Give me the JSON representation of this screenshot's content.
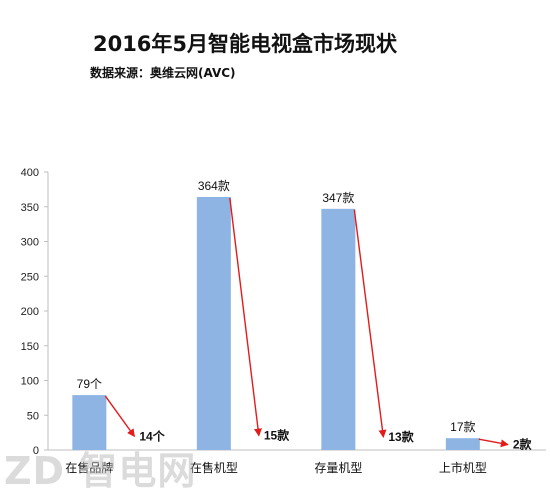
{
  "title": "2016年5月智能电视盒市场现状",
  "subtitle": "数据来源：奥维云网(AVC)",
  "watermark": "ZD 智电网",
  "colors": {
    "bar": "#8eb4e3",
    "arrow": "#e31b1b",
    "axis": "#bfbfbf"
  },
  "chart_data": {
    "type": "bar",
    "categories": [
      "在售品牌",
      "在售机型",
      "存量机型",
      "上市机型"
    ],
    "values": [
      79,
      364,
      347,
      17
    ],
    "bar_labels": [
      "79个",
      "364款",
      "347款",
      "17款"
    ],
    "secondary_values": [
      14,
      15,
      13,
      2
    ],
    "secondary_labels": [
      "14个",
      "15款",
      "13款",
      "2款"
    ],
    "ylim": [
      0,
      400
    ],
    "yticks": [
      0,
      50,
      100,
      150,
      200,
      250,
      300,
      350,
      400
    ],
    "grid": false,
    "annotations": "red arrows from each bar top to its secondary value"
  }
}
